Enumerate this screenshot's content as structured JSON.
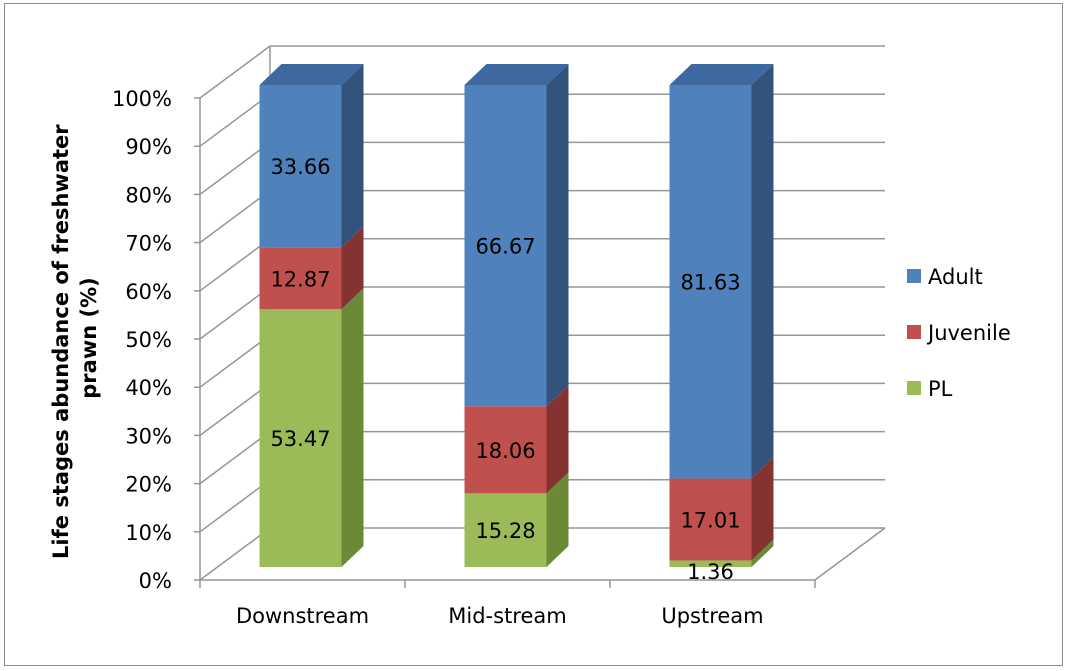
{
  "chart_data": {
    "type": "bar",
    "stacked": true,
    "percent": true,
    "three_d": true,
    "categories": [
      "Downstream",
      "Mid-stream",
      "Upstream"
    ],
    "series": [
      {
        "name": "PL",
        "values": [
          53.47,
          15.28,
          1.36
        ],
        "color": "#9bbb59",
        "side_color": "#6b8a37",
        "top_color": "#b5cf7c"
      },
      {
        "name": "Juvenile",
        "values": [
          12.87,
          18.06,
          17.01
        ],
        "color": "#c0504d",
        "side_color": "#843331",
        "top_color": "#d27a78"
      },
      {
        "name": "Adult",
        "values": [
          33.66,
          66.67,
          81.63
        ],
        "color": "#4f81bd",
        "side_color": "#33537c",
        "top_color": "#3e68a0"
      }
    ],
    "yticks": [
      "0%",
      "10%",
      "20%",
      "30%",
      "40%",
      "50%",
      "60%",
      "70%",
      "80%",
      "90%",
      "100%"
    ],
    "ylim": [
      0,
      100
    ],
    "ylabel_line1": "Life stages abundance of freshwater",
    "ylabel_line2": "prawn (%)",
    "legend": {
      "position": "right",
      "order": [
        "Adult",
        "Juvenile",
        "PL"
      ]
    },
    "grid": true
  }
}
